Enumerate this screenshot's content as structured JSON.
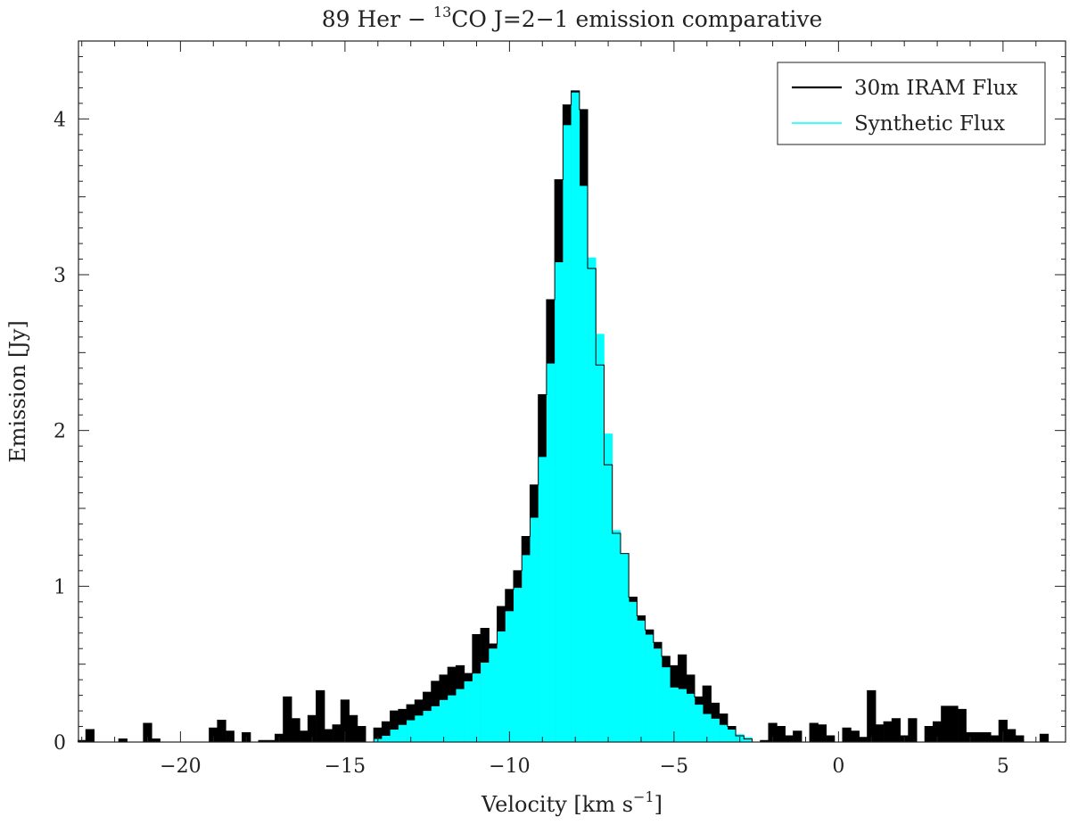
{
  "chart_data": {
    "type": "step",
    "title": {
      "prefix": "89 Her − ",
      "superscript": "13",
      "rest": "CO J=2−1 emission comparative"
    },
    "xlabel": {
      "text": "Velocity [km s",
      "superscript": "−1",
      "close": "]"
    },
    "ylabel": "Emission [Jy]",
    "xlim": [
      -23.1,
      6.9
    ],
    "ylim": [
      0,
      4.5
    ],
    "bin_width": 0.25,
    "x_ticks": [
      {
        "value": -20,
        "label": "−20"
      },
      {
        "value": -15,
        "label": "−15"
      },
      {
        "value": -10,
        "label": "−10"
      },
      {
        "value": -5,
        "label": "−5"
      },
      {
        "value": 0,
        "label": "0"
      },
      {
        "value": 5,
        "label": "5"
      }
    ],
    "y_ticks": [
      {
        "value": 0,
        "label": "0"
      },
      {
        "value": 1,
        "label": "1"
      },
      {
        "value": 2,
        "label": "2"
      },
      {
        "value": 3,
        "label": "3"
      },
      {
        "value": 4,
        "label": "4"
      }
    ],
    "legend_position": "top-right",
    "series": [
      {
        "name": "30m IRAM Flux",
        "color": "#000000",
        "x": [
          -23,
          -22.75,
          -22.5,
          -22.25,
          -22,
          -21.75,
          -21.5,
          -21.25,
          -21,
          -20.75,
          -20.5,
          -20.25,
          -20,
          -19.75,
          -19.5,
          -19.25,
          -19,
          -18.75,
          -18.5,
          -18.25,
          -18,
          -17.75,
          -17.5,
          -17.25,
          -17,
          -16.75,
          -16.5,
          -16.25,
          -16,
          -15.75,
          -15.5,
          -15.25,
          -15,
          -14.75,
          -14.5,
          -14.25,
          -14,
          -13.75,
          -13.5,
          -13.25,
          -13,
          -12.75,
          -12.5,
          -12.25,
          -12,
          -11.75,
          -11.5,
          -11.25,
          -11,
          -10.75,
          -10.5,
          -10.25,
          -10,
          -9.75,
          -9.5,
          -9.25,
          -9,
          -8.75,
          -8.5,
          -8.25,
          -8,
          -7.75,
          -7.5,
          -7.25,
          -7,
          -6.75,
          -6.5,
          -6.25,
          -6,
          -5.75,
          -5.5,
          -5.25,
          -5,
          -4.75,
          -4.5,
          -4.25,
          -4,
          -3.75,
          -3.5,
          -3.25,
          -3,
          -2.75,
          -2.5,
          -2.25,
          -2,
          -1.75,
          -1.5,
          -1.25,
          -1,
          -0.75,
          -0.5,
          -0.25,
          0,
          0.25,
          0.5,
          0.75,
          1,
          1.25,
          1.5,
          1.75,
          2,
          2.25,
          2.5,
          2.75,
          3,
          3.25,
          3.5,
          3.75,
          4,
          4.25,
          4.5,
          4.75,
          5,
          5.25,
          5.5,
          5.75,
          6,
          6.25,
          6.5
        ],
        "y": [
          0.01,
          0.08,
          0,
          0,
          0,
          0.02,
          0,
          0,
          0.12,
          0.02,
          0,
          0,
          0,
          0,
          0,
          0,
          0.09,
          0.14,
          0.07,
          0,
          0.06,
          0,
          0.01,
          0.01,
          0.05,
          0.29,
          0.15,
          0.07,
          0.17,
          0.33,
          0.08,
          0.11,
          0.27,
          0.17,
          0.1,
          0,
          0.09,
          0.13,
          0.2,
          0.21,
          0.24,
          0.27,
          0.32,
          0.39,
          0.43,
          0.48,
          0.49,
          0.44,
          0.69,
          0.73,
          0.63,
          0.87,
          0.98,
          1.1,
          1.32,
          1.65,
          2.23,
          2.84,
          3.61,
          4.09,
          4.18,
          4.06,
          3.04,
          2.42,
          1.78,
          1.34,
          1.21,
          0.93,
          0.81,
          0.72,
          0.64,
          0.55,
          0.49,
          0.56,
          0.43,
          0.29,
          0.36,
          0.25,
          0.18,
          0.1,
          0.04,
          0.02,
          0,
          0.01,
          0.12,
          0.1,
          0.04,
          0.07,
          0,
          0.12,
          0.11,
          0.04,
          0,
          0.09,
          0.07,
          0.03,
          0.33,
          0.11,
          0.13,
          0.15,
          0.04,
          0.15,
          0,
          0.1,
          0.13,
          0.23,
          0.23,
          0.21,
          0.06,
          0.06,
          0.06,
          0.04,
          0.14,
          0.08,
          0.04,
          0,
          0,
          0.05,
          0
        ]
      },
      {
        "name": "Synthetic Flux",
        "color": "#00ffff",
        "x": [
          -14,
          -13.75,
          -13.5,
          -13.25,
          -13,
          -12.75,
          -12.5,
          -12.25,
          -12,
          -11.75,
          -11.5,
          -11.25,
          -11,
          -10.75,
          -10.5,
          -10.25,
          -10,
          -9.75,
          -9.5,
          -9.25,
          -9,
          -8.75,
          -8.5,
          -8.25,
          -8,
          -7.75,
          -7.5,
          -7.25,
          -7,
          -6.75,
          -6.5,
          -6.25,
          -6,
          -5.75,
          -5.5,
          -5.25,
          -5,
          -4.75,
          -4.5,
          -4.25,
          -4,
          -3.75,
          -3.5,
          -3.25,
          -3,
          -2.75,
          -2.5
        ],
        "y": [
          0.02,
          0.04,
          0.08,
          0.11,
          0.14,
          0.17,
          0.2,
          0.23,
          0.27,
          0.3,
          0.34,
          0.39,
          0.44,
          0.51,
          0.6,
          0.71,
          0.84,
          0.99,
          1.2,
          1.44,
          1.83,
          2.43,
          3.08,
          3.96,
          4.17,
          3.57,
          3.11,
          2.62,
          1.98,
          1.36,
          1.21,
          0.9,
          0.78,
          0.69,
          0.6,
          0.48,
          0.35,
          0.34,
          0.31,
          0.24,
          0.18,
          0.15,
          0.11,
          0.08,
          0.05,
          0.03,
          0
        ]
      }
    ]
  }
}
